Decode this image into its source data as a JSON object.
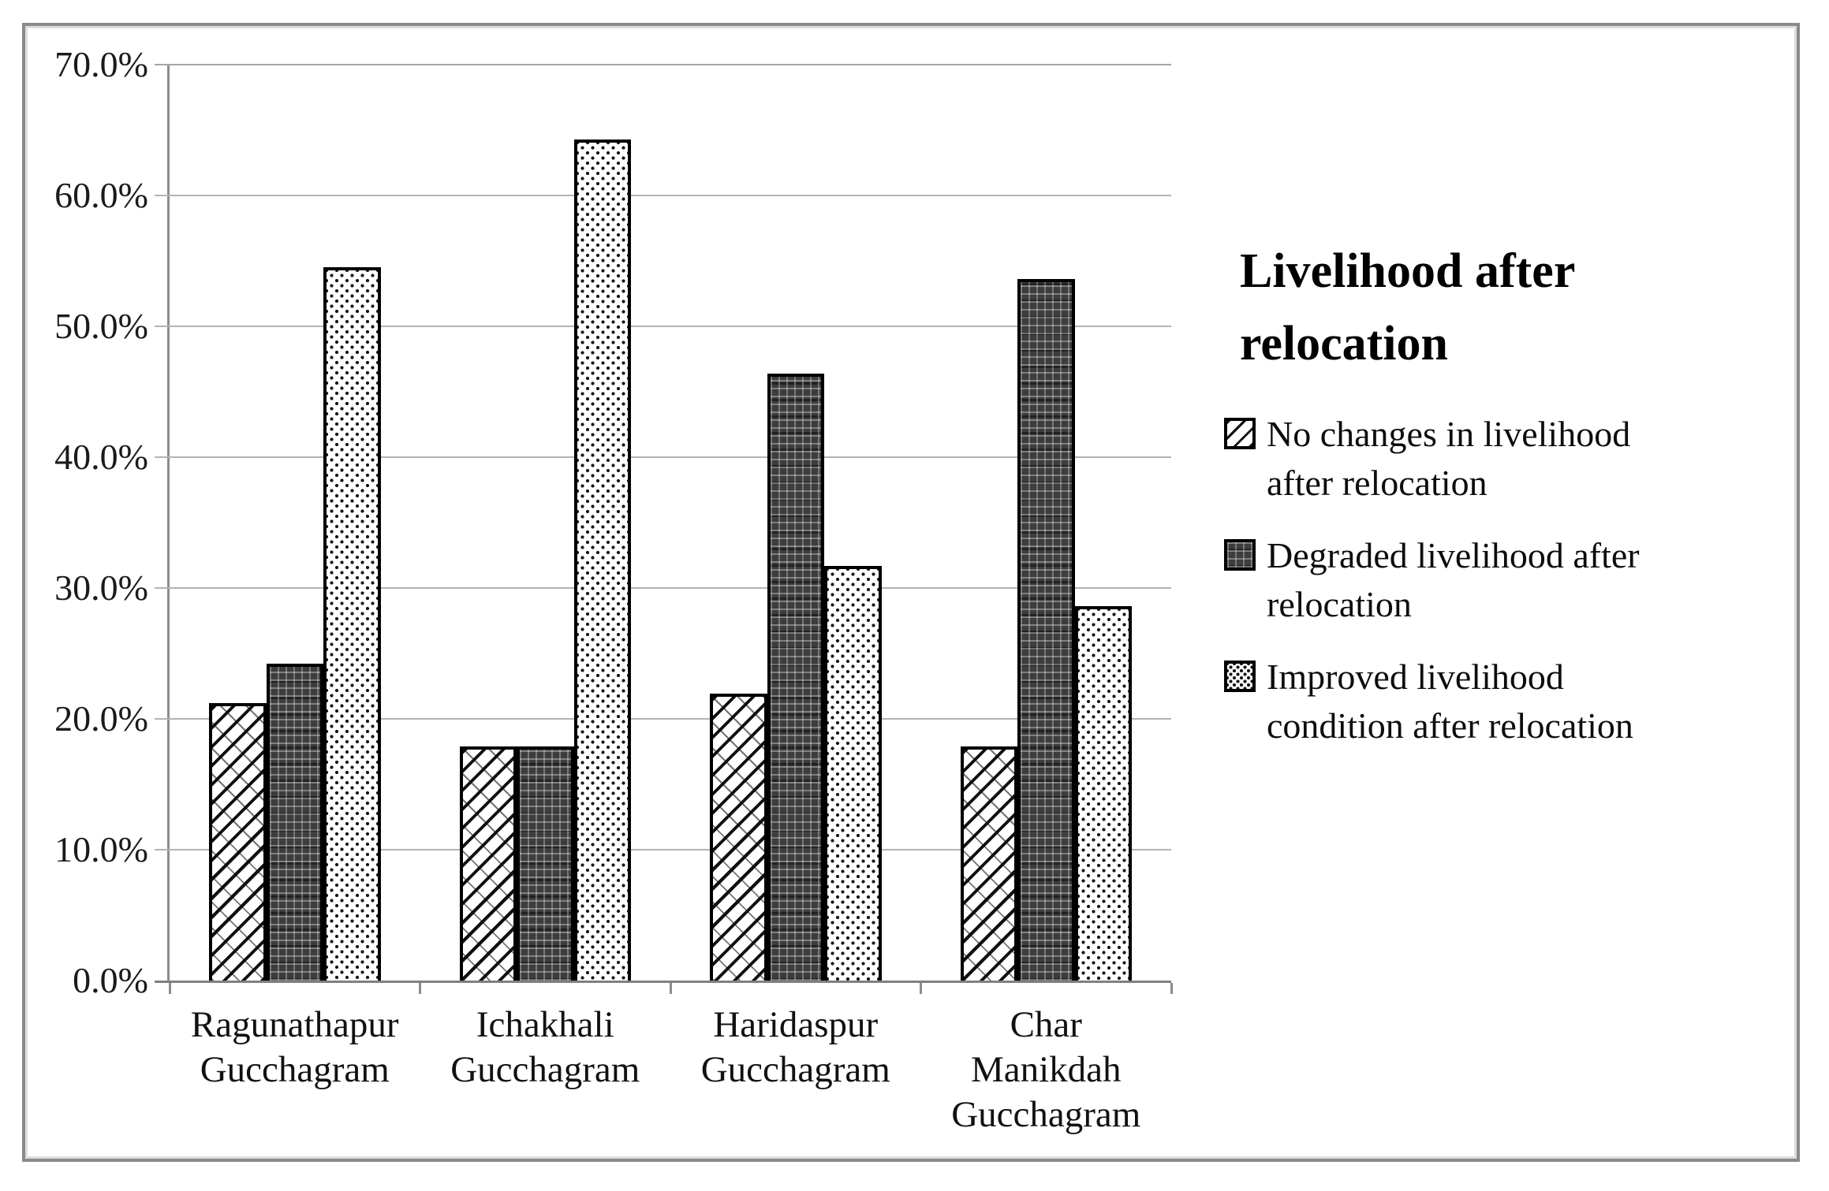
{
  "figure": {
    "background": "#ffffff",
    "frame_color": "#8a8a8a",
    "gridline_color": "#b3b3b3",
    "axis_color": "#8c8c8c",
    "bar_border_color": "#000000"
  },
  "chart_data": {
    "type": "bar",
    "title": "",
    "legend_title": "Livelihood after relocation",
    "legend_position": "right",
    "grid": true,
    "ylim": [
      0,
      70
    ],
    "ytick_step": 10,
    "ytick_labels": [
      "0.0%",
      "10.0%",
      "20.0%",
      "30.0%",
      "40.0%",
      "50.0%",
      "60.0%",
      "70.0%"
    ],
    "categories": [
      "Ragunathapur Gucchagram",
      "Ichakhali Gucchagram",
      "Haridaspur Gucchagram",
      "Char Manikdah Gucchagram"
    ],
    "categories_wrapped": [
      [
        "Ragunathapur",
        "Gucchagram"
      ],
      [
        "Ichakhali",
        "Gucchagram"
      ],
      [
        "Haridaspur",
        "Gucchagram"
      ],
      [
        "Char",
        "Manikdah",
        "Gucchagram"
      ]
    ],
    "series": [
      {
        "name": "No changes in livelihood after relocation",
        "pattern": "diagonal-hatch",
        "values": [
          21.2,
          17.9,
          21.9,
          17.9
        ]
      },
      {
        "name": "Degraded livelihood after relocation",
        "pattern": "dark-trellis",
        "values": [
          24.2,
          17.9,
          46.4,
          53.6
        ]
      },
      {
        "name": "Improved livelihood condition after relocation",
        "pattern": "light-dots",
        "values": [
          54.5,
          64.3,
          31.7,
          28.6
        ]
      }
    ]
  }
}
